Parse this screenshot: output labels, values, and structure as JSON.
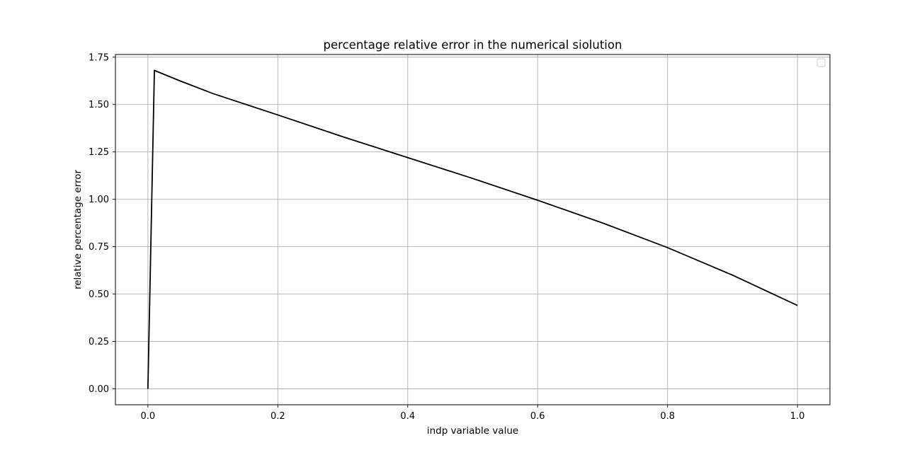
{
  "chart_data": {
    "type": "line",
    "title": "percentage relative error in the numerical siolution",
    "xlabel": "indp variable value",
    "ylabel": "relative percentage error",
    "xlim": [
      -0.05,
      1.05
    ],
    "ylim": [
      -0.084,
      1.764
    ],
    "xticks": [
      0.0,
      0.2,
      0.4,
      0.6,
      0.8,
      1.0
    ],
    "xtick_labels": [
      "0.0",
      "0.2",
      "0.4",
      "0.6",
      "0.8",
      "1.0"
    ],
    "yticks": [
      0.0,
      0.25,
      0.5,
      0.75,
      1.0,
      1.25,
      1.5,
      1.75
    ],
    "ytick_labels": [
      "0.00",
      "0.25",
      "0.50",
      "0.75",
      "1.00",
      "1.25",
      "1.50",
      "1.75"
    ],
    "grid": true,
    "legend": "upper right (empty)",
    "series": [
      {
        "color": "#000000",
        "x": [
          0.0,
          0.01,
          0.05,
          0.1,
          0.2,
          0.3,
          0.4,
          0.5,
          0.6,
          0.7,
          0.8,
          0.9,
          1.0
        ],
        "y": [
          0.0,
          1.68,
          1.624,
          1.558,
          1.445,
          1.33,
          1.22,
          1.11,
          0.995,
          0.875,
          0.745,
          0.6,
          0.44
        ]
      }
    ]
  }
}
